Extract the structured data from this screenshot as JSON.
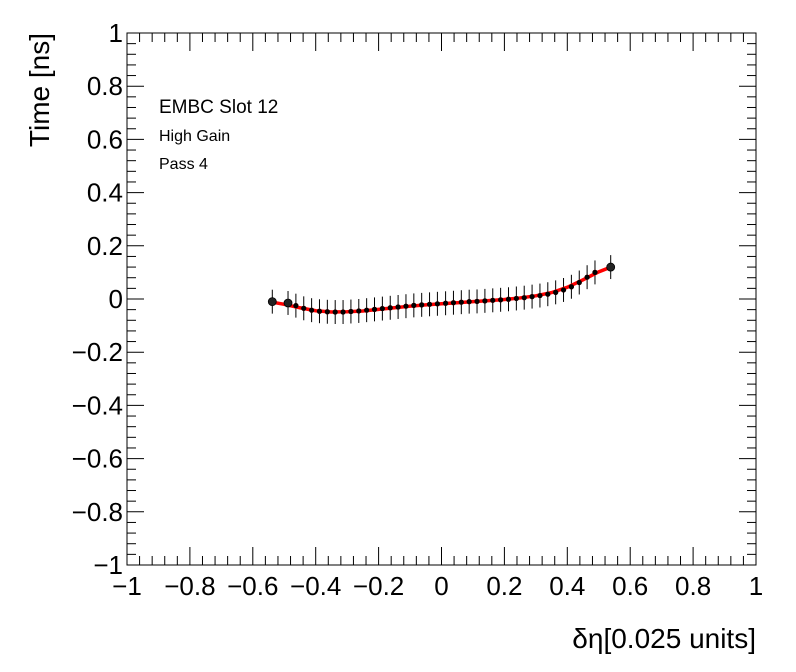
{
  "chart_data": {
    "type": "scatter",
    "xlabel": "δη[0.025 units]",
    "ylabel": "Time [ns]",
    "xlim": [
      -1,
      1
    ],
    "ylim": [
      -1,
      1
    ],
    "grid": false,
    "x_ticks": [
      "−1",
      "−0.8",
      "−0.6",
      "−0.4",
      "−0.2",
      "0",
      "0.2",
      "0.4",
      "0.6",
      "0.8",
      "1"
    ],
    "y_ticks": [
      "−1",
      "−0.8",
      "−0.6",
      "−0.4",
      "−0.2",
      "0",
      "0.2",
      "0.4",
      "0.6",
      "0.8",
      "1"
    ],
    "annotations": [
      "EMBC Slot 12",
      "High Gain",
      "Pass 4"
    ],
    "series": [
      {
        "type": "points_with_errors",
        "color": "#000000",
        "x": [
          -0.538,
          -0.488,
          -0.463,
          -0.438,
          -0.413,
          -0.388,
          -0.363,
          -0.338,
          -0.313,
          -0.288,
          -0.263,
          -0.238,
          -0.213,
          -0.188,
          -0.163,
          -0.138,
          -0.113,
          -0.088,
          -0.063,
          -0.038,
          -0.013,
          0.013,
          0.038,
          0.063,
          0.088,
          0.113,
          0.138,
          0.163,
          0.188,
          0.213,
          0.238,
          0.263,
          0.288,
          0.313,
          0.338,
          0.363,
          0.388,
          0.413,
          0.438,
          0.463,
          0.488,
          0.538
        ],
        "y": [
          -0.01,
          -0.015,
          -0.025,
          -0.035,
          -0.042,
          -0.046,
          -0.048,
          -0.049,
          -0.049,
          -0.047,
          -0.045,
          -0.042,
          -0.039,
          -0.036,
          -0.033,
          -0.03,
          -0.027,
          -0.024,
          -0.022,
          -0.02,
          -0.018,
          -0.016,
          -0.014,
          -0.012,
          -0.01,
          -0.009,
          -0.007,
          -0.005,
          -0.003,
          -0.001,
          0.002,
          0.005,
          0.009,
          0.013,
          0.018,
          0.025,
          0.034,
          0.046,
          0.062,
          0.082,
          0.1,
          0.12
        ],
        "yerr": 0.045
      },
      {
        "type": "fit_line",
        "color": "#ff0000",
        "x": [
          -0.538,
          -0.5,
          -0.45,
          -0.4,
          -0.35,
          -0.3,
          -0.25,
          -0.2,
          -0.15,
          -0.1,
          -0.05,
          0.0,
          0.05,
          0.1,
          0.15,
          0.2,
          0.25,
          0.3,
          0.35,
          0.4,
          0.45,
          0.5,
          0.538
        ],
        "y": [
          -0.012,
          -0.02,
          -0.033,
          -0.044,
          -0.049,
          -0.048,
          -0.045,
          -0.039,
          -0.033,
          -0.027,
          -0.022,
          -0.018,
          -0.014,
          -0.01,
          -0.006,
          -0.002,
          0.004,
          0.012,
          0.024,
          0.044,
          0.072,
          0.102,
          0.12
        ]
      }
    ]
  }
}
